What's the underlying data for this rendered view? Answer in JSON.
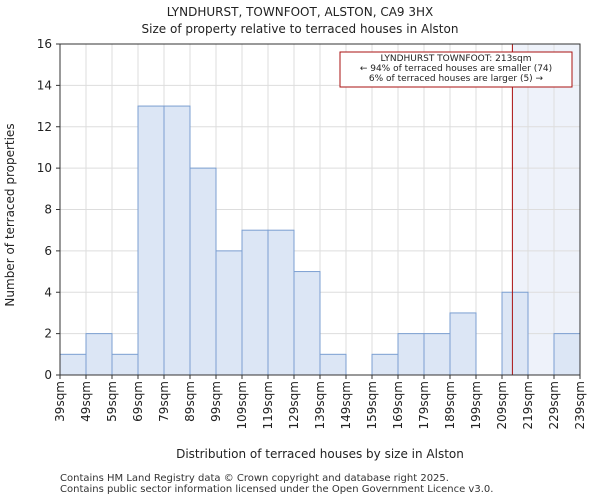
{
  "chart_data": {
    "type": "bar",
    "title": "LYNDHURST, TOWNFOOT, ALSTON, CA9 3HX",
    "subtitle": "Size of property relative to terraced houses in Alston",
    "xlabel": "Distribution of terraced houses by size in Alston",
    "ylabel": "Number of terraced properties",
    "bin_edges": [
      39,
      49,
      59,
      69,
      79,
      89,
      99,
      109,
      119,
      129,
      139,
      149,
      159,
      169,
      179,
      189,
      199,
      209,
      219,
      229,
      239
    ],
    "x_tick_labels": [
      "39sqm",
      "49sqm",
      "59sqm",
      "69sqm",
      "79sqm",
      "89sqm",
      "99sqm",
      "109sqm",
      "119sqm",
      "129sqm",
      "139sqm",
      "149sqm",
      "159sqm",
      "169sqm",
      "179sqm",
      "189sqm",
      "199sqm",
      "209sqm",
      "219sqm",
      "229sqm",
      "239sqm"
    ],
    "values": [
      1,
      2,
      1,
      13,
      13,
      10,
      6,
      7,
      7,
      5,
      1,
      0,
      1,
      2,
      2,
      3,
      0,
      4,
      0,
      2
    ],
    "ylim": [
      0,
      16
    ],
    "y_ticks": [
      0,
      2,
      4,
      6,
      8,
      10,
      12,
      14,
      16
    ],
    "xlim": [
      39,
      239
    ],
    "grid": true,
    "bar_color": "#dce6f5",
    "bar_edge_color": "#7b9fd1",
    "marker": {
      "value": 213,
      "color": "#aa1111",
      "shade_color": "#eef2fa",
      "annotation_lines": [
        "LYNDHURST TOWNFOOT: 213sqm",
        "← 94% of terraced houses are smaller (74)",
        "6% of terraced houses are larger (5) →"
      ]
    }
  },
  "footer": {
    "line1": "Contains HM Land Registry data © Crown copyright and database right 2025.",
    "line2": "Contains public sector information licensed under the Open Government Licence v3.0."
  }
}
